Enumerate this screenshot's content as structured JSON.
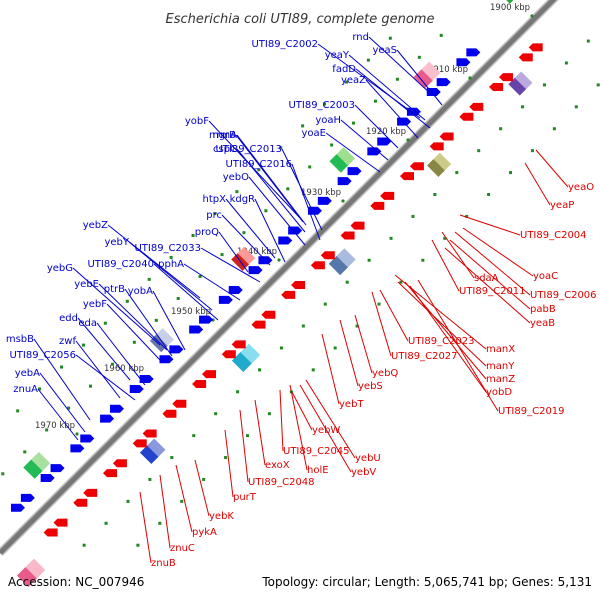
{
  "title": "Escherichia coli UTI89, complete genome",
  "footer": {
    "accession": "Accession: NC_007946",
    "summary": "Topology: circular; Length: 5,065,741 bp; Genes: 5,131"
  },
  "colors": {
    "forward_label": "#0000cc",
    "reverse_label": "#dd0000",
    "backbone": "#777777",
    "tick": "#228822"
  },
  "kbp_ticks": [
    "1900 kbp",
    "1910 kbp",
    "1920 kbp",
    "1930 kbp",
    "1940 kbp",
    "1950 kbp",
    "1960 kbp",
    "1970 kbp"
  ],
  "forward_genes": [
    "rnd",
    "yeaS",
    "UTI89_C2002",
    "yeaY",
    "fadD",
    "yeaZ",
    "UTI89_C2003",
    "yoaH",
    "yoaE",
    "yobF",
    "mgrB",
    "rrmA",
    "cspC",
    "UTI89_C2013",
    "UTI89_C2016",
    "yebO",
    "htpX",
    "kdgR",
    "prc",
    "proQ",
    "yebZ",
    "yebY",
    "UTI89_C2033",
    "UTI89_C2040",
    "pphA",
    "yebG",
    "yebE",
    "ptrB",
    "yobA",
    "yebF",
    "edd",
    "eda",
    "zwf",
    "msbB",
    "UTI89_C2056",
    "yebA",
    "znuA"
  ],
  "reverse_genes": [
    "yeaO",
    "yeaP",
    "UTI89_C2004",
    "yoaC",
    "sdaA",
    "UTI89_C2011",
    "UTI89_C2006",
    "pabB",
    "yeaB",
    "manX",
    "UTI89_C2023",
    "UTI89_C2027",
    "manY",
    "manZ",
    "yobD",
    "UTI89_C2019",
    "yebQ",
    "yebS",
    "yebT",
    "yebW",
    "UTI89_C2045",
    "yebU",
    "holE",
    "yebV",
    "exoX",
    "UTI89_C2048",
    "purT",
    "yebK",
    "pykA",
    "znuC",
    "znuB"
  ]
}
